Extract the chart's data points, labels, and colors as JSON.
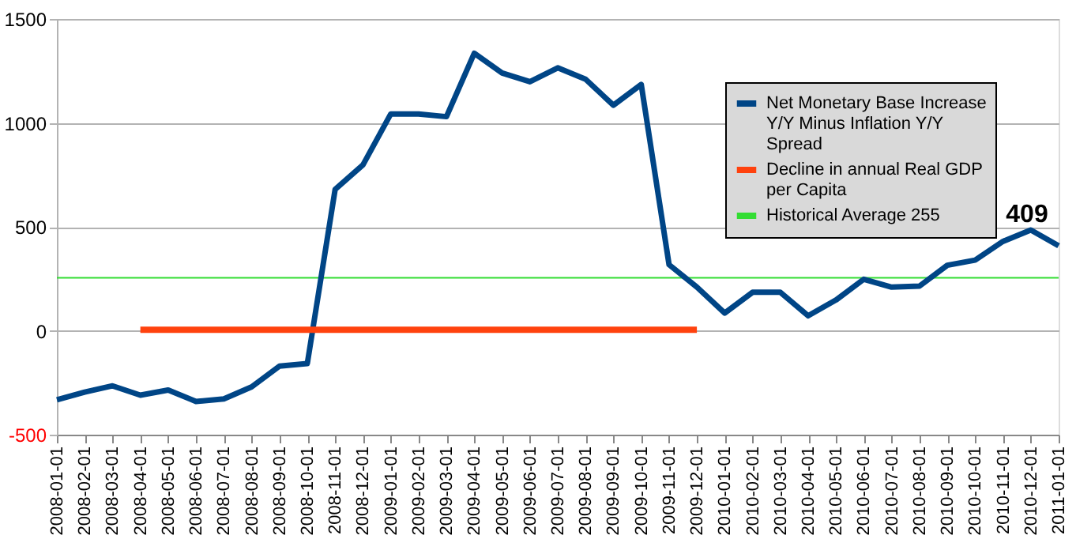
{
  "chart_data": {
    "type": "line",
    "categories": [
      "2008-01-01",
      "2008-02-01",
      "2008-03-01",
      "2008-04-01",
      "2008-05-01",
      "2008-06-01",
      "2008-07-01",
      "2008-08-01",
      "2008-09-01",
      "2008-10-01",
      "2008-11-01",
      "2008-12-01",
      "2009-01-01",
      "2009-02-01",
      "2009-03-01",
      "2009-04-01",
      "2009-05-01",
      "2009-06-01",
      "2009-07-01",
      "2009-08-01",
      "2009-09-01",
      "2009-10-01",
      "2009-11-01",
      "2009-12-01",
      "2010-01-01",
      "2010-02-01",
      "2010-03-01",
      "2010-04-01",
      "2010-05-01",
      "2010-06-01",
      "2010-07-01",
      "2010-08-01",
      "2010-09-01",
      "2010-10-01",
      "2010-11-01",
      "2010-12-01",
      "2011-01-01"
    ],
    "series": [
      {
        "name": "Net Monetary Base Increase Y/Y Minus Inflation Y/Y Spread",
        "color": "#004586",
        "values": [
          -332,
          -295,
          -265,
          -310,
          -285,
          -340,
          -328,
          -270,
          -170,
          -158,
          680,
          798,
          1043,
          1043,
          1030,
          1335,
          1240,
          1198,
          1265,
          1210,
          1085,
          1185,
          318,
          210,
          85,
          185,
          185,
          72,
          148,
          248,
          210,
          215,
          315,
          340,
          430,
          485,
          409
        ]
      },
      {
        "name": "Decline in annual Real GDP per Capita",
        "color": "#ff420e",
        "values": [
          null,
          null,
          null,
          5,
          5,
          5,
          5,
          5,
          5,
          5,
          5,
          5,
          5,
          5,
          5,
          5,
          5,
          5,
          5,
          5,
          5,
          5,
          5,
          5,
          null,
          null,
          null,
          null,
          null,
          null,
          null,
          null,
          null,
          null,
          null,
          null,
          null
        ]
      }
    ],
    "ref_lines": [
      {
        "axis": "y",
        "value": 255,
        "label": "Historical Average 255",
        "color": "#33dd33"
      }
    ],
    "annotations": [
      {
        "text": "409",
        "x": "2011-01-01",
        "y": 409
      }
    ],
    "ylim": [
      -500,
      1500
    ],
    "yticks": [
      -500,
      0,
      500,
      1000,
      1500
    ],
    "grid": "y",
    "legend": "top right"
  }
}
